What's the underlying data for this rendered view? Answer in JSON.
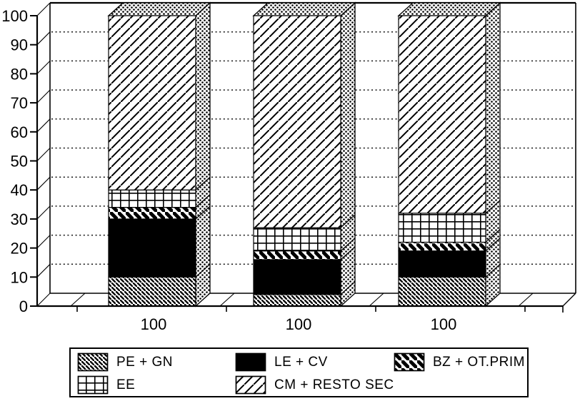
{
  "chart_data": {
    "type": "bar",
    "variant": "3d-stacked-column",
    "title": "",
    "xlabel": "",
    "ylabel": "",
    "categories": [
      "100",
      "100",
      "100"
    ],
    "series": [
      {
        "name": "PE + GN",
        "pattern": "hatch-backslash-dense",
        "values": [
          10,
          4,
          10
        ]
      },
      {
        "name": "LE + CV",
        "pattern": "solid-black",
        "values": [
          20,
          12,
          9
        ]
      },
      {
        "name": "BZ + OT.PRIM",
        "pattern": "stripe-backslash",
        "values": [
          4,
          3,
          3
        ]
      },
      {
        "name": "EE",
        "pattern": "grid",
        "values": [
          6,
          8,
          10
        ]
      },
      {
        "name": "CM + RESTO SEC",
        "pattern": "hatch-slash",
        "values": [
          60,
          73,
          68
        ]
      }
    ],
    "stack_totals": [
      100,
      100,
      100
    ],
    "ylim": [
      0,
      100
    ],
    "yticks": [
      0,
      10,
      20,
      30,
      40,
      50,
      60,
      70,
      80,
      90,
      100
    ],
    "grid": "horizontal-dotted",
    "legend_position": "bottom"
  },
  "legend": {
    "items": [
      {
        "label": "PE + GN",
        "pattern": "hatch-backslash-dense"
      },
      {
        "label": "LE + CV",
        "pattern": "solid-black"
      },
      {
        "label": "BZ + OT.PRIM",
        "pattern": "stripe-backslash"
      },
      {
        "label": "EE",
        "pattern": "grid"
      },
      {
        "label": "CM + RESTO SEC",
        "pattern": "hatch-slash"
      }
    ]
  },
  "colors": {
    "ink": "#000000",
    "paper": "#ffffff"
  }
}
